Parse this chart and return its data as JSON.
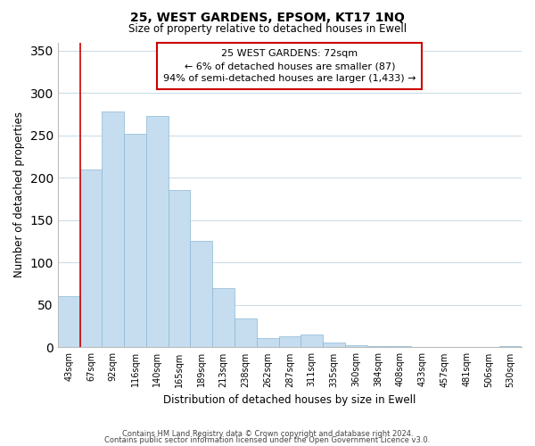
{
  "title": "25, WEST GARDENS, EPSOM, KT17 1NQ",
  "subtitle": "Size of property relative to detached houses in Ewell",
  "xlabel": "Distribution of detached houses by size in Ewell",
  "ylabel": "Number of detached properties",
  "bin_labels": [
    "43sqm",
    "67sqm",
    "92sqm",
    "116sqm",
    "140sqm",
    "165sqm",
    "189sqm",
    "213sqm",
    "238sqm",
    "262sqm",
    "287sqm",
    "311sqm",
    "335sqm",
    "360sqm",
    "384sqm",
    "408sqm",
    "433sqm",
    "457sqm",
    "481sqm",
    "506sqm",
    "530sqm"
  ],
  "bar_values": [
    60,
    210,
    278,
    252,
    273,
    186,
    126,
    70,
    34,
    11,
    13,
    15,
    6,
    3,
    2,
    1,
    0,
    0,
    0,
    0,
    2
  ],
  "bar_color": "#c6ddef",
  "bar_edge_color": "#8ab8d4",
  "ref_line_color": "#cc0000",
  "reference_label": "25 WEST GARDENS: 72sqm",
  "annotation_line1": "← 6% of detached houses are smaller (87)",
  "annotation_line2": "94% of semi-detached houses are larger (1,433) →",
  "annotation_box_color": "#ffffff",
  "annotation_box_edge": "#cc0000",
  "ylim": [
    0,
    360
  ],
  "yticks": [
    0,
    50,
    100,
    150,
    200,
    250,
    300,
    350
  ],
  "footer1": "Contains HM Land Registry data © Crown copyright and database right 2024.",
  "footer2": "Contains public sector information licensed under the Open Government Licence v3.0.",
  "background_color": "#ffffff",
  "grid_color": "#ccdde8"
}
